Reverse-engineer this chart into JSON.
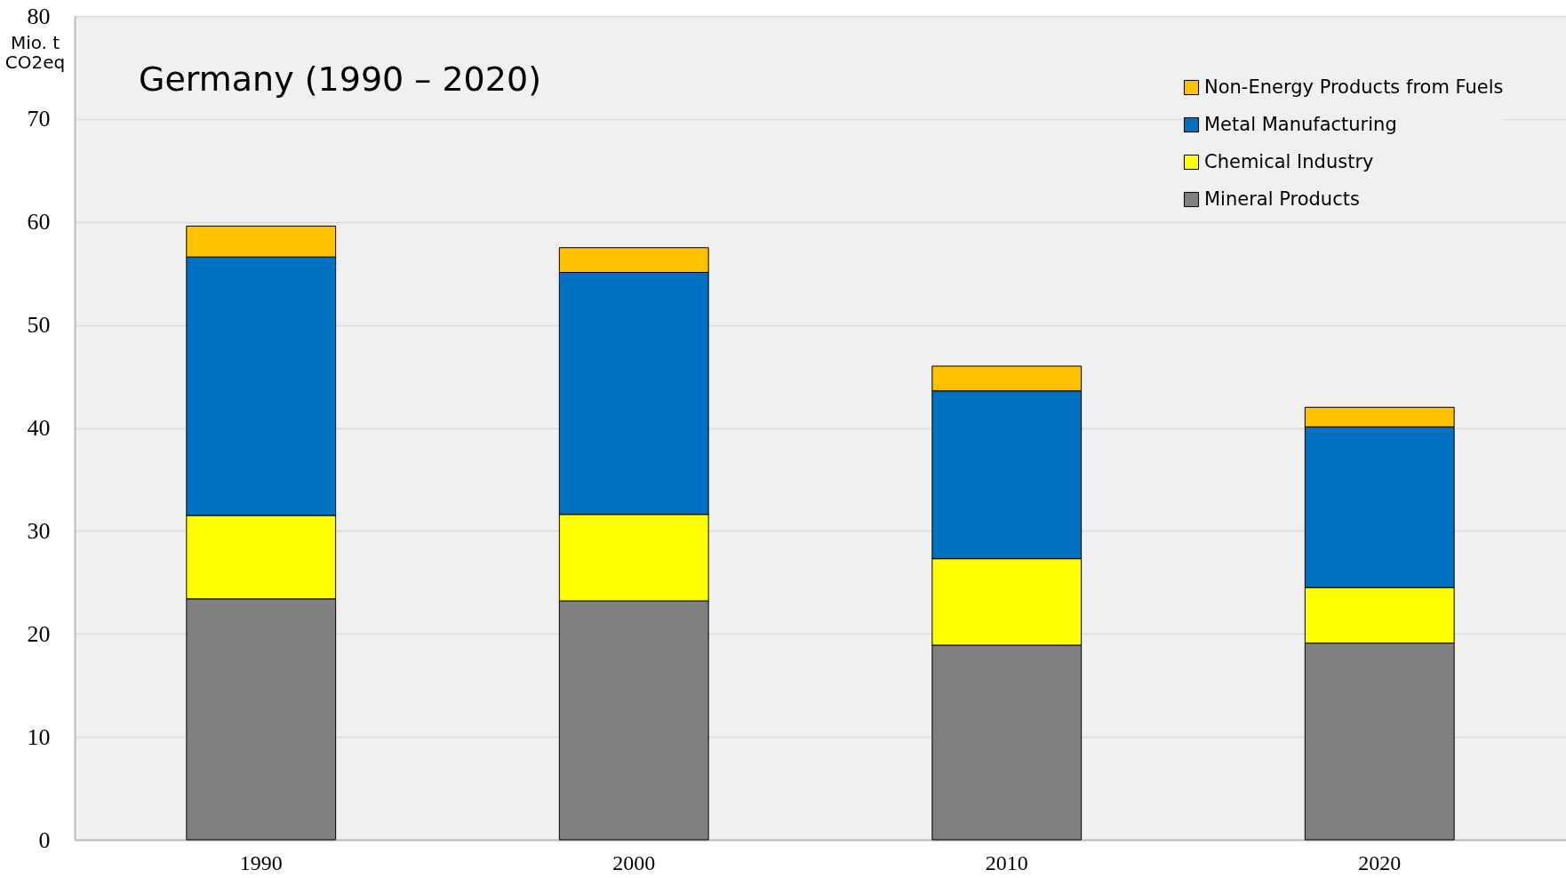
{
  "chart_data": {
    "type": "bar",
    "title": "Germany (1990 – 2020)",
    "ylabel": "Mio. t CO2eq",
    "categories": [
      "1990",
      "2000",
      "2010",
      "2020"
    ],
    "series": [
      {
        "name": "Mineral Products",
        "color": "#808080",
        "values": [
          23.4,
          23.2,
          18.9,
          19.1
        ]
      },
      {
        "name": "Chemical Industry",
        "color": "#ffff00",
        "values": [
          8.1,
          8.4,
          8.4,
          5.4
        ]
      },
      {
        "name": "Metal Manufacturing",
        "color": "#0070c0",
        "values": [
          25.1,
          23.5,
          16.3,
          15.6
        ]
      },
      {
        "name": "Non-Energy Products from Fuels",
        "color": "#ffc000",
        "values": [
          3.0,
          2.4,
          2.4,
          1.9
        ]
      }
    ],
    "stacked": true,
    "ylim": [
      0,
      80
    ],
    "yticks": [
      0,
      10,
      20,
      30,
      40,
      50,
      60,
      70,
      80
    ],
    "grid": "y",
    "legend": "top right"
  }
}
